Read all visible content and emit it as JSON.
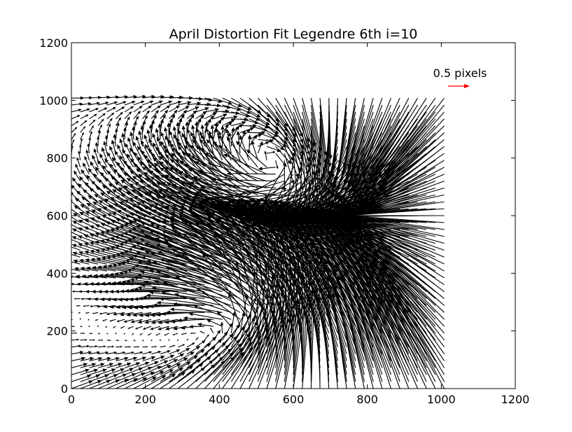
{
  "chart_data": {
    "type": "quiver",
    "title": "April Distortion Fit Legendre 6th i=10",
    "xlabel": "",
    "ylabel": "",
    "xlim": [
      0,
      1200
    ],
    "ylim": [
      0,
      1200
    ],
    "xticks": [
      "0",
      "200",
      "400",
      "600",
      "800",
      "1000",
      "1200"
    ],
    "yticks": [
      "0",
      "200",
      "400",
      "600",
      "800",
      "1000",
      "1200"
    ],
    "grid": false,
    "grid_x": [
      0,
      1008,
      24
    ],
    "grid_y": [
      0,
      1008,
      24
    ],
    "field_centers": {
      "lower_vortex": [
        470,
        230
      ],
      "upper_vortex": [
        560,
        760
      ],
      "sink": [
        845,
        610
      ]
    },
    "quiver_key": {
      "label": "0.5 pixels",
      "magnitude": 0.5,
      "color": "#ff0000",
      "placement": "top-right"
    },
    "colors": {
      "arrows": "#000000",
      "key_arrow": "#ff0000",
      "axes": "#000000",
      "background": "#ffffff"
    }
  }
}
